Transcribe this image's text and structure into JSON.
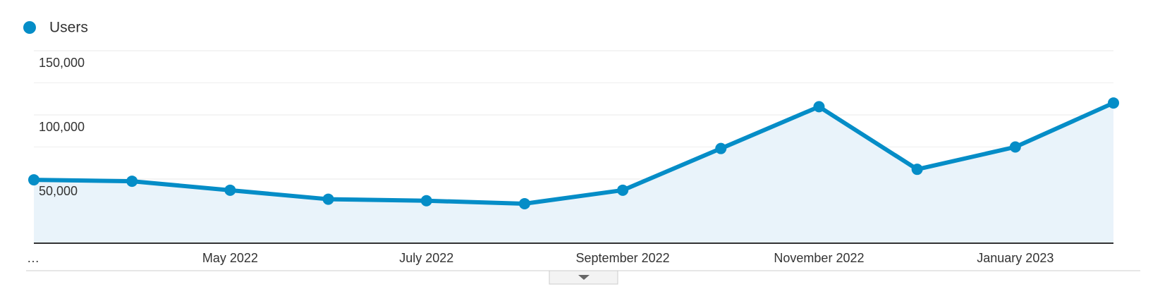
{
  "chart_data": {
    "type": "line",
    "categories": [
      "…",
      null,
      "May 2022",
      null,
      "July 2022",
      null,
      "September 2022",
      null,
      "November 2022",
      null,
      "January 2023",
      null
    ],
    "series": [
      {
        "name": "Users",
        "color": "#058dc7",
        "values": [
          49400,
          48300,
          41300,
          34300,
          33100,
          30800,
          41300,
          73800,
          106400,
          57600,
          75000,
          109300
        ]
      }
    ],
    "ylim": [
      0,
      150000
    ],
    "yticks": [
      {
        "value": 50000,
        "label": "50,000"
      },
      {
        "value": 100000,
        "label": "100,000"
      },
      {
        "value": 150000,
        "label": "150,000"
      }
    ],
    "minor_yticks": [
      25000,
      75000,
      125000
    ],
    "grid": true
  }
}
